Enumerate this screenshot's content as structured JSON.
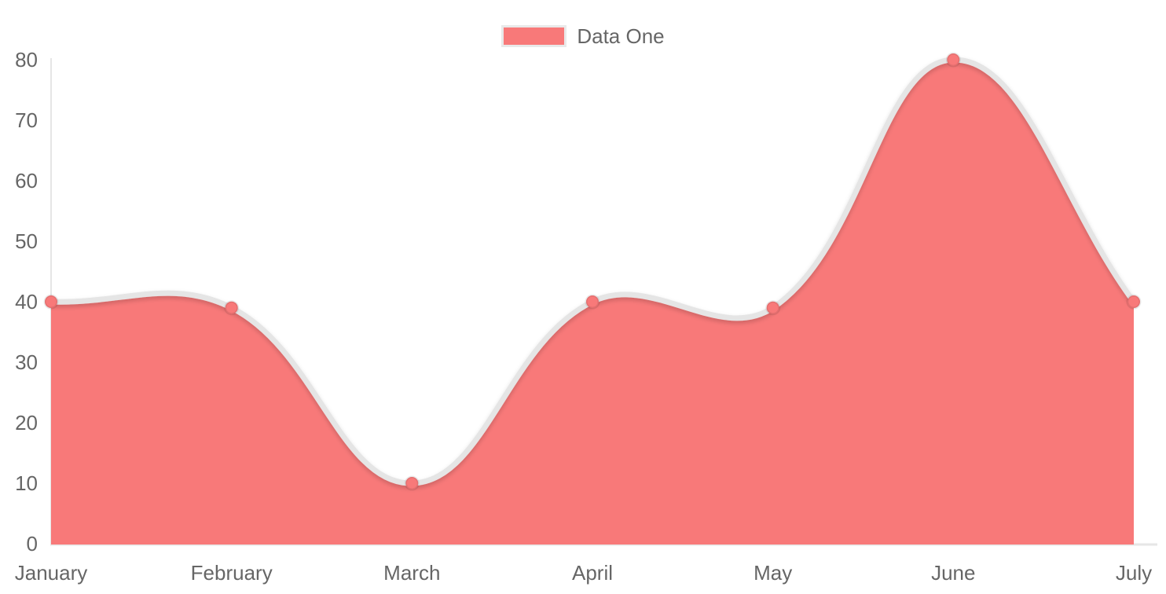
{
  "legend": {
    "items": [
      {
        "label": "Data One",
        "swatch_color": "#f87979",
        "swatch_border_color": "#e9e9e9"
      }
    ],
    "position": "top"
  },
  "chart_data": {
    "type": "area",
    "title": "",
    "categories": [
      "January",
      "February",
      "March",
      "April",
      "May",
      "June",
      "July"
    ],
    "series": [
      {
        "name": "Data One",
        "values": [
          40,
          39,
          10,
          40,
          39,
          80,
          40
        ],
        "fill_color": "#f87979",
        "line_color": "#e5e5e5",
        "point_color": "#f87979",
        "point_border_color": "rgba(0,0,0,0.08)"
      }
    ],
    "xlabel": "",
    "ylabel": "",
    "ylim": [
      0,
      80
    ],
    "yticks": [
      0,
      10,
      20,
      30,
      40,
      50,
      60,
      70,
      80
    ],
    "grid": false,
    "legend_position": "top",
    "line_tension": 0.4,
    "axis_color": "#e6e6e6",
    "tick_label_color": "#666666",
    "background_color": "#ffffff"
  }
}
